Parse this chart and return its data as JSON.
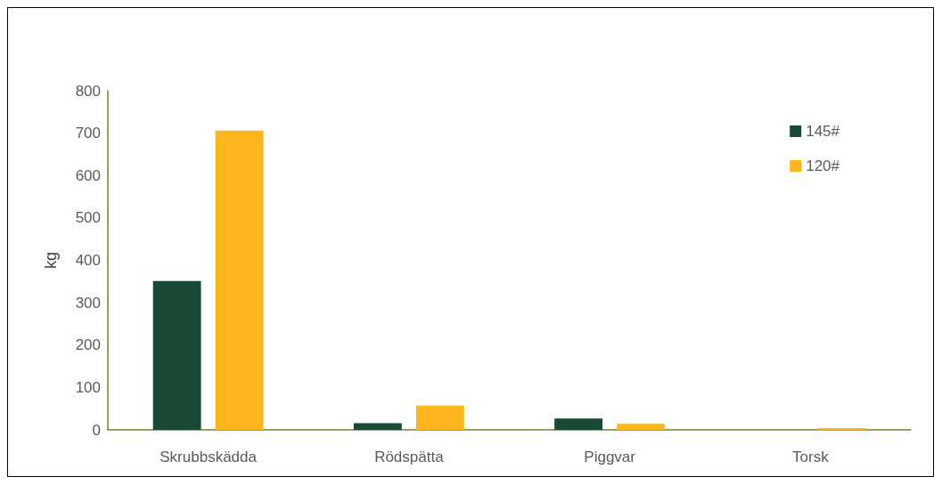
{
  "chart_data": {
    "type": "bar",
    "ylabel": "kg",
    "categories": [
      "Skrubbskädda",
      "Rödspätta",
      "Piggvar",
      "Torsk"
    ],
    "series": [
      {
        "name": "145#",
        "color": "#184a35",
        "values": [
          351,
          16,
          27,
          null
        ]
      },
      {
        "name": "120#",
        "color": "#fdb71d",
        "values": [
          706,
          57,
          14,
          4
        ]
      }
    ],
    "ylim": [
      0,
      800
    ],
    "yticks": [
      0,
      100,
      200,
      300,
      400,
      500,
      600,
      700,
      800
    ],
    "grid": false,
    "legend": "top right"
  }
}
